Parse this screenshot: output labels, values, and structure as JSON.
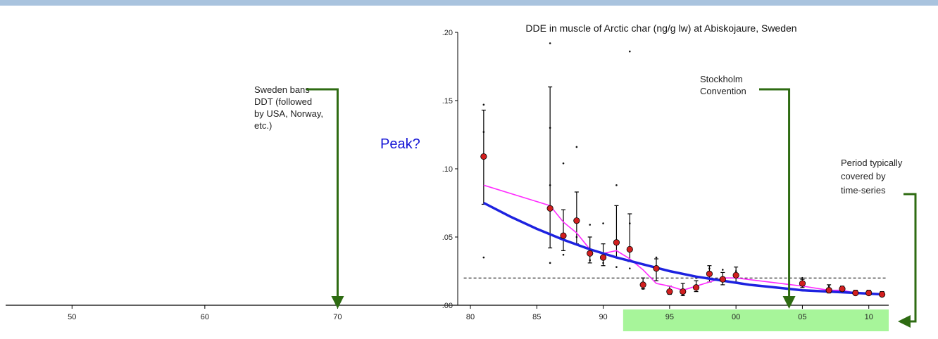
{
  "chart_data": {
    "type": "scatter",
    "title": "DDE in muscle of Arctic char (ng/g lw) at Abiskojaure, Sweden",
    "xlabel": "",
    "ylabel": "",
    "xlim": [
      1945,
      2011.5
    ],
    "ylim": [
      0,
      0.2
    ],
    "x_ticks": [
      {
        "value": 1950,
        "label": "50"
      },
      {
        "value": 1960,
        "label": "60"
      },
      {
        "value": 1970,
        "label": "70"
      },
      {
        "value": 1980,
        "label": "80"
      },
      {
        "value": 1985,
        "label": "85"
      },
      {
        "value": 1990,
        "label": "90"
      },
      {
        "value": 1995,
        "label": "95"
      },
      {
        "value": 2000,
        "label": "00"
      },
      {
        "value": 2005,
        "label": "05"
      },
      {
        "value": 2010,
        "label": "10"
      }
    ],
    "y_ticks": [
      {
        "value": 0,
        "label": ".00"
      },
      {
        "value": 0.05,
        "label": ".05"
      },
      {
        "value": 0.1,
        "label": ".10"
      },
      {
        "value": 0.15,
        "label": ".15"
      },
      {
        "value": 0.2,
        "label": ".20"
      }
    ],
    "means": [
      {
        "x": 1981,
        "y": 0.109,
        "lo": 0.074,
        "hi": 0.143
      },
      {
        "x": 1986,
        "y": 0.071,
        "lo": 0.042,
        "hi": 0.16
      },
      {
        "x": 1987,
        "y": 0.051,
        "lo": 0.04,
        "hi": 0.07
      },
      {
        "x": 1988,
        "y": 0.062,
        "lo": 0.045,
        "hi": 0.083
      },
      {
        "x": 1989,
        "y": 0.038,
        "lo": 0.031,
        "hi": 0.05
      },
      {
        "x": 1990,
        "y": 0.035,
        "lo": 0.029,
        "hi": 0.045
      },
      {
        "x": 1991,
        "y": 0.046,
        "lo": 0.035,
        "hi": 0.073
      },
      {
        "x": 1992,
        "y": 0.041,
        "lo": 0.032,
        "hi": 0.067
      },
      {
        "x": 1993,
        "y": 0.015,
        "lo": 0.012,
        "hi": 0.02
      },
      {
        "x": 1994,
        "y": 0.027,
        "lo": 0.018,
        "hi": 0.034
      },
      {
        "x": 1995,
        "y": 0.01,
        "lo": 0.008,
        "hi": 0.014
      },
      {
        "x": 1996,
        "y": 0.01,
        "lo": 0.007,
        "hi": 0.016
      },
      {
        "x": 1997,
        "y": 0.013,
        "lo": 0.01,
        "hi": 0.018
      },
      {
        "x": 1998,
        "y": 0.023,
        "lo": 0.017,
        "hi": 0.029
      },
      {
        "x": 1999,
        "y": 0.019,
        "lo": 0.015,
        "hi": 0.024
      },
      {
        "x": 2000,
        "y": 0.022,
        "lo": 0.017,
        "hi": 0.028
      },
      {
        "x": 2005,
        "y": 0.016,
        "lo": 0.013,
        "hi": 0.019
      },
      {
        "x": 2007,
        "y": 0.011,
        "lo": 0.009,
        "hi": 0.015
      },
      {
        "x": 2008,
        "y": 0.012,
        "lo": 0.01,
        "hi": 0.014
      },
      {
        "x": 2009,
        "y": 0.009,
        "lo": 0.008,
        "hi": 0.011
      },
      {
        "x": 2010,
        "y": 0.009,
        "lo": 0.008,
        "hi": 0.011
      },
      {
        "x": 2011,
        "y": 0.008,
        "lo": 0.007,
        "hi": 0.01
      }
    ],
    "individual_points": [
      [
        1981,
        0.147
      ],
      [
        1981,
        0.127
      ],
      [
        1981,
        0.035
      ],
      [
        1986,
        0.192
      ],
      [
        1986,
        0.13
      ],
      [
        1986,
        0.088
      ],
      [
        1986,
        0.031
      ],
      [
        1987,
        0.104
      ],
      [
        1987,
        0.037
      ],
      [
        1988,
        0.116
      ],
      [
        1988,
        0.05
      ],
      [
        1989,
        0.059
      ],
      [
        1989,
        0.033
      ],
      [
        1990,
        0.06
      ],
      [
        1990,
        0.031
      ],
      [
        1991,
        0.088
      ],
      [
        1991,
        0.028
      ],
      [
        1992,
        0.186
      ],
      [
        1992,
        0.06
      ],
      [
        1992,
        0.027
      ],
      [
        1993,
        0.012
      ],
      [
        1994,
        0.035
      ],
      [
        1995,
        0.009
      ],
      [
        1996,
        0.008
      ],
      [
        1997,
        0.02
      ],
      [
        1998,
        0.027
      ],
      [
        1999,
        0.026
      ],
      [
        2000,
        0.025
      ],
      [
        2005,
        0.02
      ],
      [
        2007,
        0.014
      ],
      [
        2008,
        0.013
      ]
    ],
    "smoother_line": [
      [
        1981,
        0.088
      ],
      [
        1986,
        0.073
      ],
      [
        1987,
        0.061
      ],
      [
        1988,
        0.053
      ],
      [
        1989,
        0.041
      ],
      [
        1990,
        0.038
      ],
      [
        1991,
        0.04
      ],
      [
        1992,
        0.034
      ],
      [
        1993,
        0.026
      ],
      [
        1994,
        0.016
      ],
      [
        1995,
        0.014
      ],
      [
        1996,
        0.011
      ],
      [
        1997,
        0.014
      ],
      [
        1998,
        0.017
      ],
      [
        1999,
        0.02
      ],
      [
        2000,
        0.02
      ],
      [
        2005,
        0.014
      ],
      [
        2007,
        0.011
      ],
      [
        2008,
        0.011
      ],
      [
        2009,
        0.009
      ],
      [
        2010,
        0.009
      ],
      [
        2011,
        0.008
      ]
    ],
    "trend_line": [
      [
        1981,
        0.075
      ],
      [
        1983,
        0.065
      ],
      [
        1985,
        0.056
      ],
      [
        1987,
        0.048
      ],
      [
        1989,
        0.041
      ],
      [
        1991,
        0.035
      ],
      [
        1993,
        0.03
      ],
      [
        1995,
        0.025
      ],
      [
        1997,
        0.021
      ],
      [
        1999,
        0.018
      ],
      [
        2001,
        0.015
      ],
      [
        2003,
        0.013
      ],
      [
        2005,
        0.011
      ],
      [
        2007,
        0.01
      ],
      [
        2009,
        0.009
      ],
      [
        2011,
        0.008
      ]
    ],
    "reference_line_y": 0.02,
    "highlighted_period": [
      1991.5,
      2011.5
    ],
    "colors": {
      "means": "#d21f1f",
      "smoother_line": "#ff2bff",
      "trend_line": "#1d22e0",
      "arrows": "#2e6b12",
      "highlight": "#a7f59a",
      "peak_text": "#1515d6"
    }
  },
  "annotations": {
    "sweden_ban": [
      "Sweden bans",
      "DDT (followed",
      "by USA, Norway,",
      "etc.)"
    ],
    "sweden_ban_year": 1970,
    "stockholm": [
      "Stockholm",
      "Convention"
    ],
    "stockholm_year": 2004,
    "period": [
      "Period typically",
      "covered by",
      "time-series"
    ],
    "peak": "Peak?"
  }
}
